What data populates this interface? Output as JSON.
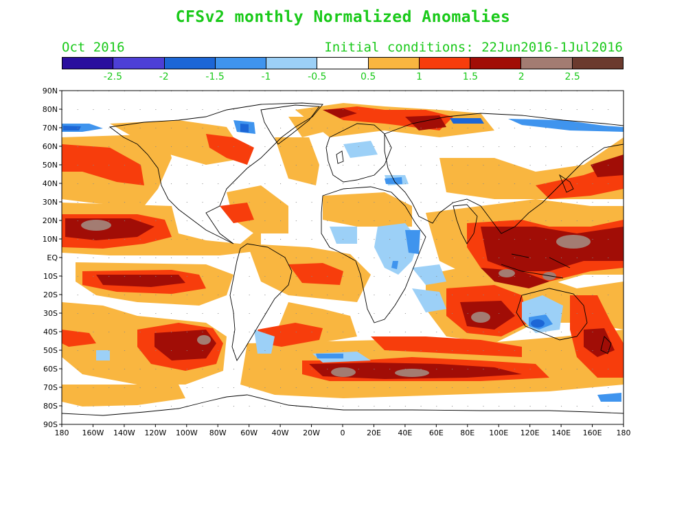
{
  "header": {
    "title": "CFSv2 monthly Normalized Anomalies",
    "valid_label": "Oct 2016",
    "init_label": "Initial conditions: 22Jun2016-1Jul2016"
  },
  "colorbar": {
    "colors": [
      "#2a0f9e",
      "#4d3fd6",
      "#1c66d6",
      "#3f94ee",
      "#9cd0f7",
      "#ffffff",
      "#f9b640",
      "#f73d0c",
      "#a10d06",
      "#a37c72",
      "#6b3a2e"
    ],
    "labels": [
      "-2.5",
      "-2",
      "-1.5",
      "-1",
      "-0.5",
      "0.5",
      "1",
      "1.5",
      "2",
      "2.5"
    ]
  },
  "axes": {
    "lat_labels": [
      "90N",
      "80N",
      "70N",
      "60N",
      "50N",
      "40N",
      "30N",
      "20N",
      "10N",
      "EQ",
      "10S",
      "20S",
      "30S",
      "40S",
      "50S",
      "60S",
      "70S",
      "80S",
      "90S"
    ],
    "lon_labels": [
      "180",
      "160W",
      "140W",
      "120W",
      "100W",
      "80W",
      "60W",
      "40W",
      "20W",
      "0",
      "20E",
      "40E",
      "60E",
      "80E",
      "100E",
      "120E",
      "140E",
      "160E",
      "180"
    ]
  },
  "colors": {
    "title_green": "#19c919",
    "anomaly_light": "#f9b640",
    "anomaly_orange": "#f73d0c",
    "anomaly_dark": "#a10d06",
    "anomaly_brown": "#a37c72",
    "cool_light": "#9cd0f7",
    "cool_mid": "#3f94ee",
    "cool_dark": "#1c66d6"
  }
}
